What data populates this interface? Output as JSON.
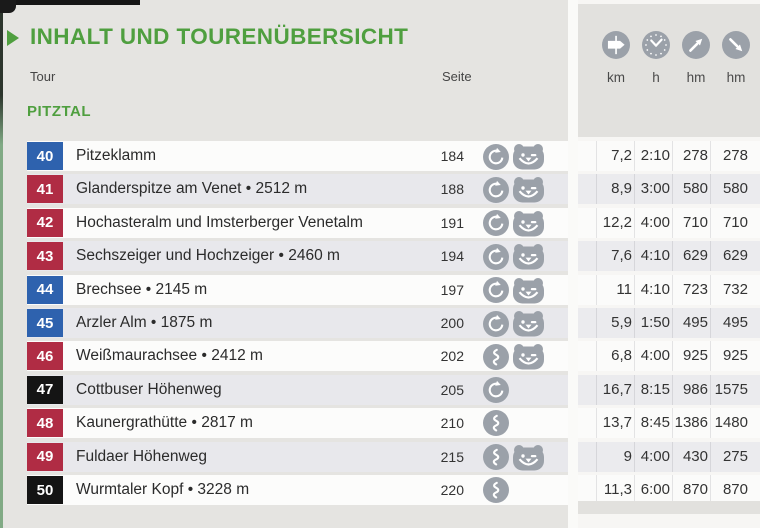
{
  "header": {
    "title": "INHALT UND TOURENÜBERSICHT",
    "tour_col_label": "Tour",
    "page_col_label": "Seite",
    "region": "PITZTAL",
    "stat_columns": [
      {
        "icon": "signpost",
        "label": "km"
      },
      {
        "icon": "clock",
        "label": "h"
      },
      {
        "icon": "ascent-arrow",
        "label": "hm"
      },
      {
        "icon": "descent-arrow",
        "label": "hm"
      }
    ]
  },
  "colors": {
    "accent_green": "#4f9f3f",
    "badge_blue": "#2e62ae",
    "badge_red": "#b02c44",
    "badge_black": "#141414",
    "icon_gray": "#9ba1a9"
  },
  "tours": [
    {
      "nr": "40",
      "color": "blue",
      "name": "Pitzeklamm",
      "page": "184",
      "icons": [
        "circuit-route",
        "bear"
      ],
      "km": "7,2",
      "h": "2:10",
      "up": "278",
      "down": "278"
    },
    {
      "nr": "41",
      "color": "red",
      "name": "Glanderspitze am Venet • 2512 m",
      "page": "188",
      "icons": [
        "circuit-route",
        "bear"
      ],
      "km": "8,9",
      "h": "3:00",
      "up": "580",
      "down": "580"
    },
    {
      "nr": "42",
      "color": "red",
      "name": "Hochasteralm und Imsterberger Venetalm",
      "page": "191",
      "icons": [
        "circuit-route",
        "bear"
      ],
      "km": "12,2",
      "h": "4:00",
      "up": "710",
      "down": "710"
    },
    {
      "nr": "43",
      "color": "red",
      "name": "Sechszeiger und Hochzeiger • 2460 m",
      "page": "194",
      "icons": [
        "circuit-route",
        "bear"
      ],
      "km": "7,6",
      "h": "4:10",
      "up": "629",
      "down": "629"
    },
    {
      "nr": "44",
      "color": "blue",
      "name": "Brechsee • 2145 m",
      "page": "197",
      "icons": [
        "circuit-route",
        "bear"
      ],
      "km": "11",
      "h": "4:10",
      "up": "723",
      "down": "732"
    },
    {
      "nr": "45",
      "color": "blue",
      "name": "Arzler Alm • 1875 m",
      "page": "200",
      "icons": [
        "circuit-route",
        "bear"
      ],
      "km": "5,9",
      "h": "1:50",
      "up": "495",
      "down": "495"
    },
    {
      "nr": "46",
      "color": "red",
      "name": "Weißmaurachsee • 2412 m",
      "page": "202",
      "icons": [
        "trail-route",
        "bear"
      ],
      "km": "6,8",
      "h": "4:00",
      "up": "925",
      "down": "925"
    },
    {
      "nr": "47",
      "color": "black",
      "name": "Cottbuser Höhenweg",
      "page": "205",
      "icons": [
        "circuit-route"
      ],
      "km": "16,7",
      "h": "8:15",
      "up": "986",
      "down": "1575"
    },
    {
      "nr": "48",
      "color": "red",
      "name": "Kaunergrathütte • 2817 m",
      "page": "210",
      "icons": [
        "trail-route"
      ],
      "km": "13,7",
      "h": "8:45",
      "up": "1386",
      "down": "1480"
    },
    {
      "nr": "49",
      "color": "red",
      "name": "Fuldaer Höhenweg",
      "page": "215",
      "icons": [
        "trail-route",
        "bear"
      ],
      "km": "9",
      "h": "4:00",
      "up": "430",
      "down": "275"
    },
    {
      "nr": "50",
      "color": "black",
      "name": "Wurmtaler Kopf • 3228 m",
      "page": "220",
      "icons": [
        "trail-route"
      ],
      "km": "11,3",
      "h": "6:00",
      "up": "870",
      "down": "870"
    }
  ]
}
